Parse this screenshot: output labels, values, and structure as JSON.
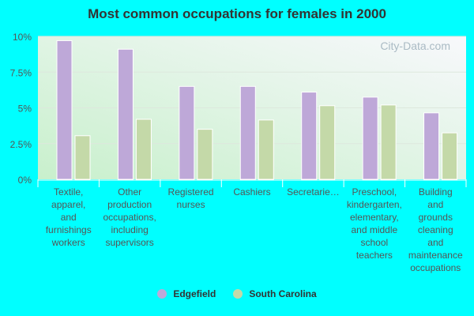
{
  "chart_data": {
    "type": "bar",
    "title": "Most common occupations for females in 2000",
    "categories": [
      "Textile, apparel, and furnishings workers",
      "Other production occupations, including supervisors",
      "Registered nurses",
      "Cashiers",
      "Secretarie…",
      "Preschool, kindergarten, elementary, and middle school teachers",
      "Building and grounds cleaning and maintenance occupations"
    ],
    "category_lines": [
      [
        "Textile,",
        "apparel,",
        "and",
        "furnishings",
        "workers"
      ],
      [
        "Other",
        "production",
        "occupations,",
        "including",
        "supervisors"
      ],
      [
        "Registered",
        "nurses"
      ],
      [
        "Cashiers"
      ],
      [
        "Secretarie…"
      ],
      [
        "Preschool,",
        "kindergarten,",
        "elementary,",
        "and middle",
        "school",
        "teachers"
      ],
      [
        "Building",
        "and",
        "grounds",
        "cleaning",
        "and",
        "maintenance",
        "occupations"
      ]
    ],
    "series": [
      {
        "name": "Edgefield",
        "color": "#bea8d8",
        "values": [
          9.7,
          9.1,
          6.5,
          6.5,
          6.1,
          5.75,
          4.65
        ]
      },
      {
        "name": "South Carolina",
        "color": "#c4d9a8",
        "values": [
          3.05,
          4.2,
          3.5,
          4.15,
          5.15,
          5.2,
          3.25
        ]
      }
    ],
    "yticks": [
      "0%",
      "2.5%",
      "5%",
      "7.5%",
      "10%"
    ],
    "ylim": [
      0,
      10
    ],
    "grid": true,
    "legend": "bottom",
    "watermark": "City-Data.com"
  }
}
